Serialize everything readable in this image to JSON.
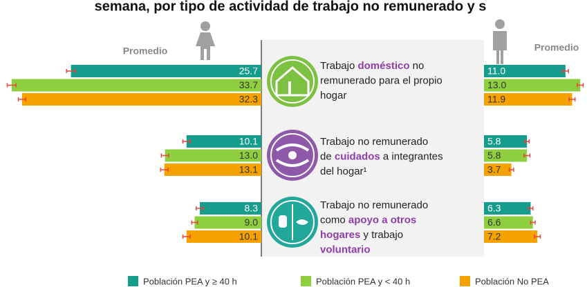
{
  "chart_data": {
    "type": "butterfly",
    "title": "semana, por tipo de actividad de trabajo no remunerado y s",
    "categories": [
      {
        "lines": [
          [
            {
              "text": "Trabajo "
            },
            {
              "text": "doméstico",
              "em": true
            },
            {
              "text": " no"
            }
          ],
          [
            {
              "text": "remunerado para el propio"
            }
          ],
          [
            {
              "text": "hogar"
            }
          ]
        ]
      },
      {
        "lines": [
          [
            {
              "text": "Trabajo no remunerado"
            }
          ],
          [
            {
              "text": "de "
            },
            {
              "text": "cuidados",
              "em": true
            },
            {
              "text": " a integrantes"
            }
          ],
          [
            {
              "text": "del hogar¹"
            }
          ]
        ]
      },
      {
        "lines": [
          [
            {
              "text": "Trabajo no remunerado"
            }
          ],
          [
            {
              "text": "como "
            },
            {
              "text": "apoyo a otros",
              "em": true
            }
          ],
          [
            {
              "text": "hogares",
              "em": true
            },
            {
              "text": " y trabajo"
            }
          ],
          [
            {
              "text": "voluntario",
              "em": true
            }
          ]
        ]
      }
    ],
    "series": [
      {
        "name": "Población PEA y ≥ 40 h",
        "color": "#169c8c",
        "label_color": "#ffffff"
      },
      {
        "name": "Población PEA y < 40 h",
        "color": "#8dcf3f",
        "label_color": "#333333"
      },
      {
        "name": "Población No PEA",
        "color": "#f5a100",
        "label_color": "#333333"
      }
    ],
    "sides": [
      {
        "label": "Promedio",
        "direction": "left",
        "values": [
          [
            25.7,
            10.1,
            8.3
          ],
          [
            33.7,
            13.0,
            9.0
          ],
          [
            32.3,
            13.1,
            10.1
          ]
        ],
        "value_labels": [
          [
            "25.7",
            "10.1",
            "8.3"
          ],
          [
            "33.7",
            "13.0",
            "9.0"
          ],
          [
            "32.3",
            "13.1",
            "10.1"
          ]
        ],
        "errors": [
          [
            0.6,
            0.5,
            0.5
          ],
          [
            0.6,
            0.5,
            0.4
          ],
          [
            0.5,
            0.5,
            0.5
          ]
        ]
      },
      {
        "label": "Promedio",
        "direction": "right",
        "values": [
          [
            11.0,
            5.8,
            6.3
          ],
          [
            13.0,
            5.8,
            6.6
          ],
          [
            11.9,
            3.7,
            7.2
          ]
        ],
        "value_labels": [
          [
            "11.0",
            "5.8",
            "6.3"
          ],
          [
            "13.0",
            "5.8",
            "6.6"
          ],
          [
            "11.9",
            "3.7",
            "7.2"
          ]
        ],
        "errors": [
          [
            0.4,
            0.3,
            0.3
          ],
          [
            0.4,
            0.4,
            0.3
          ],
          [
            0.4,
            0.3,
            0.4
          ]
        ]
      }
    ],
    "xlim": [
      0,
      35
    ],
    "accent_color": "#8e3fa6",
    "error_color": "#e8443a"
  }
}
